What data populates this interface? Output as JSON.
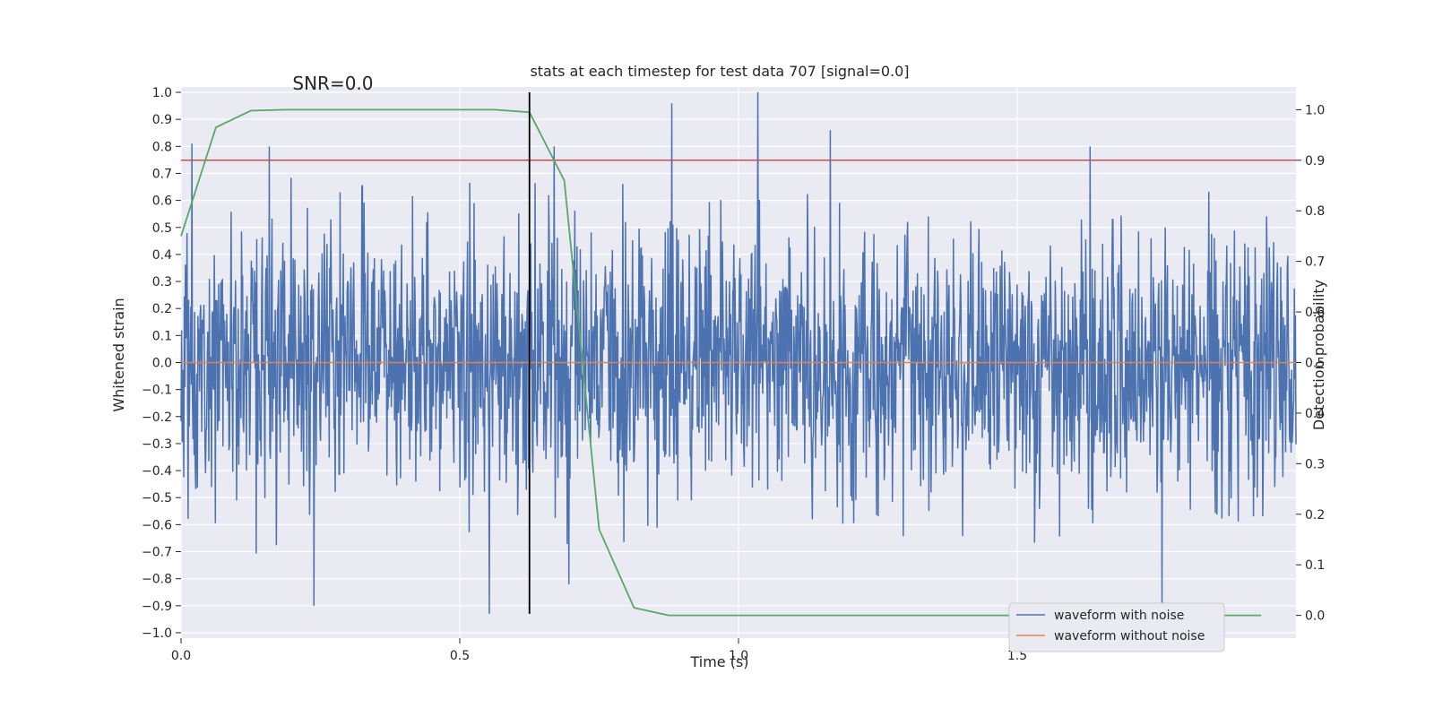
{
  "chart_data": {
    "type": "line",
    "title": "stats at each timestep for test data 707 [signal=0.0]",
    "xlabel": "Time (s)",
    "ylabel": "Whitened strain",
    "y2label": "Detection probability",
    "xlim": [
      0.0,
      2.0
    ],
    "ylim": [
      -1.02,
      1.02
    ],
    "y2lim": [
      -0.045,
      1.045
    ],
    "grid": true,
    "legend_position": "lower-right",
    "xticks": [
      0.0,
      0.5,
      1.0,
      1.5
    ],
    "xtick_labels": [
      "0.0",
      "0.5",
      "1.0",
      "1.5"
    ],
    "yticks": [
      1.0,
      0.9,
      0.8,
      0.7,
      0.6,
      0.5,
      0.4,
      0.3,
      0.2,
      0.1,
      0.0,
      -0.1,
      -0.2,
      -0.3,
      -0.4,
      -0.5,
      -0.6,
      -0.7,
      -0.8,
      -0.9,
      -1.0
    ],
    "ytick_labels": [
      "1.0",
      "0.9",
      "0.8",
      "0.7",
      "0.6",
      "0.5",
      "0.4",
      "0.3",
      "0.2",
      "0.1",
      "0.0",
      "−0.1",
      "−0.2",
      "−0.3",
      "−0.4",
      "−0.5",
      "−0.6",
      "−0.7",
      "−0.8",
      "−0.9",
      "−1.0"
    ],
    "y2ticks": [
      1.0,
      0.9,
      0.8,
      0.7,
      0.6,
      0.5,
      0.4,
      0.3,
      0.2,
      0.1,
      0.0
    ],
    "y2tick_labels": [
      "1.0",
      "0.9",
      "0.8",
      "0.7",
      "0.6",
      "0.5",
      "0.4",
      "0.3",
      "0.2",
      "0.1",
      "0.0"
    ],
    "annotation": "SNR=0.0",
    "annotation_at": [
      0.2,
      1.01
    ],
    "vline_x": 0.625,
    "vline_y_range": [
      -0.93,
      1.0
    ],
    "threshold_y2": 0.9,
    "series": [
      {
        "name": "waveform with noise",
        "color": "#4c72b0",
        "axis": "left",
        "n_points": 2048,
        "x_range": [
          0.0,
          2.0
        ],
        "amplitude_range": [
          -0.93,
          1.0
        ],
        "spikes": [
          [
            0.02,
            0.81
          ],
          [
            0.238,
            -0.9
          ],
          [
            0.553,
            -0.93
          ],
          [
            0.88,
            0.96
          ],
          [
            1.035,
            1.0
          ],
          [
            1.165,
            0.86
          ],
          [
            1.76,
            -0.9
          ]
        ]
      },
      {
        "name": "waveform without noise",
        "color": "#dd8452",
        "axis": "left",
        "x": [
          0.0,
          2.0
        ],
        "values": [
          0.0,
          0.0
        ]
      },
      {
        "name": "detection probability",
        "color": "#55a868",
        "axis": "right",
        "x": [
          0.0,
          0.0625,
          0.125,
          0.1875,
          0.25,
          0.3125,
          0.375,
          0.4375,
          0.5,
          0.5625,
          0.625,
          0.6875,
          0.75,
          0.8125,
          0.875,
          0.9375,
          1.0,
          1.0625,
          1.125,
          1.1875,
          1.25,
          1.3125,
          1.375,
          1.4375,
          1.5,
          1.5625,
          1.625,
          1.6875,
          1.75,
          1.8125,
          1.9375
        ],
        "values": [
          0.75,
          0.965,
          0.998,
          1.0,
          1.0,
          1.0,
          1.0,
          1.0,
          1.0,
          1.0,
          0.995,
          0.86,
          0.17,
          0.015,
          0.0,
          0.0,
          0.0,
          0.0,
          0.0,
          0.0,
          0.0,
          0.0,
          0.0,
          0.0,
          0.0,
          0.0,
          0.0,
          0.0,
          0.0,
          0.0,
          0.0
        ]
      }
    ],
    "colors": {
      "plot_bg": "#eaeaf2",
      "grid": "#ffffff",
      "threshold": "#c44e52",
      "vline": "#000000",
      "text": "#262626"
    }
  }
}
